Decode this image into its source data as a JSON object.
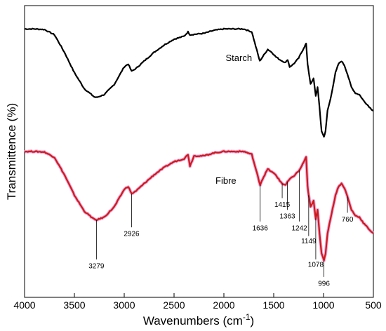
{
  "chart_data": {
    "type": "line",
    "xlabel": "Wavenumbers (cm",
    "xlabel_sup": "-1",
    "xlabel_tail": ")",
    "ylabel": "Transmittence (%)",
    "xlim": [
      4000,
      500
    ],
    "x_ticks": [
      4000,
      3500,
      3000,
      2500,
      2000,
      1500,
      1000,
      500
    ],
    "x_tick_labels": [
      "4000",
      "3500",
      "3000",
      "2500",
      "2000",
      "1500",
      "1000",
      "500"
    ],
    "y_units": "arbitrary (relative transmittance)",
    "ylim": [
      0,
      100
    ],
    "grid": false,
    "series": [
      {
        "name": "Starch",
        "color": "#000000",
        "points": [
          [
            4000,
            92
          ],
          [
            3900,
            92
          ],
          [
            3800,
            91.8
          ],
          [
            3700,
            90
          ],
          [
            3600,
            84
          ],
          [
            3500,
            77
          ],
          [
            3400,
            71.5
          ],
          [
            3300,
            68.7
          ],
          [
            3279,
            68.5
          ],
          [
            3200,
            69.5
          ],
          [
            3100,
            73
          ],
          [
            3000,
            79
          ],
          [
            2960,
            80
          ],
          [
            2926,
            77.5
          ],
          [
            2880,
            78.5
          ],
          [
            2800,
            81
          ],
          [
            2700,
            84
          ],
          [
            2600,
            86.5
          ],
          [
            2500,
            88.5
          ],
          [
            2400,
            89.5
          ],
          [
            2360,
            91
          ],
          [
            2340,
            90
          ],
          [
            2200,
            90.5
          ],
          [
            2100,
            91.5
          ],
          [
            2000,
            92
          ],
          [
            1900,
            92
          ],
          [
            1800,
            92
          ],
          [
            1720,
            91
          ],
          [
            1680,
            86
          ],
          [
            1640,
            81
          ],
          [
            1620,
            82
          ],
          [
            1560,
            85
          ],
          [
            1520,
            84
          ],
          [
            1480,
            82.5
          ],
          [
            1440,
            81.5
          ],
          [
            1415,
            81
          ],
          [
            1380,
            80.5
          ],
          [
            1360,
            81.5
          ],
          [
            1340,
            79
          ],
          [
            1300,
            80
          ],
          [
            1250,
            82
          ],
          [
            1220,
            84
          ],
          [
            1190,
            86
          ],
          [
            1175,
            87
          ],
          [
            1160,
            80
          ],
          [
            1149,
            77.5
          ],
          [
            1130,
            73
          ],
          [
            1100,
            75
          ],
          [
            1078,
            69
          ],
          [
            1060,
            72
          ],
          [
            1040,
            65
          ],
          [
            1020,
            57
          ],
          [
            996,
            55
          ],
          [
            980,
            57
          ],
          [
            960,
            64
          ],
          [
            930,
            68
          ],
          [
            880,
            77
          ],
          [
            850,
            80
          ],
          [
            820,
            81
          ],
          [
            790,
            79.5
          ],
          [
            760,
            76.5
          ],
          [
            720,
            72
          ],
          [
            680,
            70
          ],
          [
            640,
            69.5
          ],
          [
            600,
            67.5
          ],
          [
            560,
            66
          ],
          [
            520,
            64.5
          ],
          [
            500,
            64
          ]
        ]
      },
      {
        "name": "Fibre",
        "color": "#cc1a1a",
        "points": [
          [
            4000,
            50
          ],
          [
            3900,
            50
          ],
          [
            3800,
            49.8
          ],
          [
            3700,
            48
          ],
          [
            3600,
            42
          ],
          [
            3500,
            35
          ],
          [
            3400,
            29.5
          ],
          [
            3300,
            26.7
          ],
          [
            3279,
            26.5
          ],
          [
            3200,
            27.5
          ],
          [
            3100,
            31
          ],
          [
            3000,
            37
          ],
          [
            2960,
            38
          ],
          [
            2926,
            35.5
          ],
          [
            2880,
            36.5
          ],
          [
            2800,
            39
          ],
          [
            2700,
            42
          ],
          [
            2600,
            44.5
          ],
          [
            2500,
            46.5
          ],
          [
            2400,
            47.5
          ],
          [
            2360,
            49
          ],
          [
            2340,
            45
          ],
          [
            2300,
            48.5
          ],
          [
            2200,
            48.5
          ],
          [
            2100,
            49.5
          ],
          [
            2000,
            50
          ],
          [
            1900,
            50
          ],
          [
            1800,
            50
          ],
          [
            1720,
            49
          ],
          [
            1680,
            44
          ],
          [
            1636,
            38.5
          ],
          [
            1620,
            40
          ],
          [
            1560,
            44
          ],
          [
            1520,
            43
          ],
          [
            1480,
            42
          ],
          [
            1440,
            40
          ],
          [
            1415,
            39
          ],
          [
            1380,
            38.5
          ],
          [
            1363,
            39.5
          ],
          [
            1340,
            40.5
          ],
          [
            1300,
            41.5
          ],
          [
            1260,
            43
          ],
          [
            1242,
            43.5
          ],
          [
            1220,
            45
          ],
          [
            1190,
            47
          ],
          [
            1175,
            48
          ],
          [
            1160,
            38
          ],
          [
            1149,
            35
          ],
          [
            1130,
            31
          ],
          [
            1100,
            33
          ],
          [
            1078,
            27
          ],
          [
            1060,
            30
          ],
          [
            1040,
            22
          ],
          [
            1020,
            15
          ],
          [
            996,
            12.5
          ],
          [
            980,
            15
          ],
          [
            960,
            22
          ],
          [
            930,
            27
          ],
          [
            880,
            35
          ],
          [
            850,
            38
          ],
          [
            820,
            39
          ],
          [
            790,
            37.5
          ],
          [
            760,
            34.5
          ],
          [
            720,
            30
          ],
          [
            680,
            28
          ],
          [
            640,
            27.5
          ],
          [
            600,
            25.5
          ],
          [
            560,
            24
          ],
          [
            520,
            22.5
          ],
          [
            500,
            22
          ]
        ]
      }
    ],
    "series_labels": [
      {
        "text": "Starch",
        "x": 1850,
        "y": 81
      },
      {
        "text": "Fibre",
        "x": 1980,
        "y": 39
      }
    ],
    "annotations": [
      {
        "text": "3279",
        "x": 3279,
        "y_line_top": 26.5,
        "y_line_bottom": 13,
        "label_y": 10
      },
      {
        "text": "2926",
        "x": 2926,
        "y_line_top": 35.5,
        "y_line_bottom": 24,
        "label_y": 21
      },
      {
        "text": "1636",
        "x": 1636,
        "y_line_top": 38.5,
        "y_line_bottom": 26,
        "label_y": 23
      },
      {
        "text": "1415",
        "x": 1415,
        "y_line_top": 39,
        "y_line_bottom": 34,
        "label_y": 31
      },
      {
        "text": "1363",
        "x": 1363,
        "y_line_top": 39.5,
        "y_line_bottom": 30,
        "label_y": 27
      },
      {
        "text": "1242",
        "x": 1242,
        "y_line_top": 43.5,
        "y_line_bottom": 26,
        "label_y": 23
      },
      {
        "text": "1149",
        "x": 1149,
        "y_line_top": 35,
        "y_line_bottom": 21,
        "label_y": 18.5
      },
      {
        "text": "1078",
        "x": 1078,
        "y_line_top": 27,
        "y_line_bottom": 13,
        "label_y": 10.5
      },
      {
        "text": "996",
        "x": 996,
        "y_line_top": 12.5,
        "y_line_bottom": 7,
        "label_y": 4
      },
      {
        "text": "760",
        "x": 760,
        "y_line_top": 34.5,
        "y_line_bottom": 29,
        "label_y": 26
      }
    ]
  }
}
